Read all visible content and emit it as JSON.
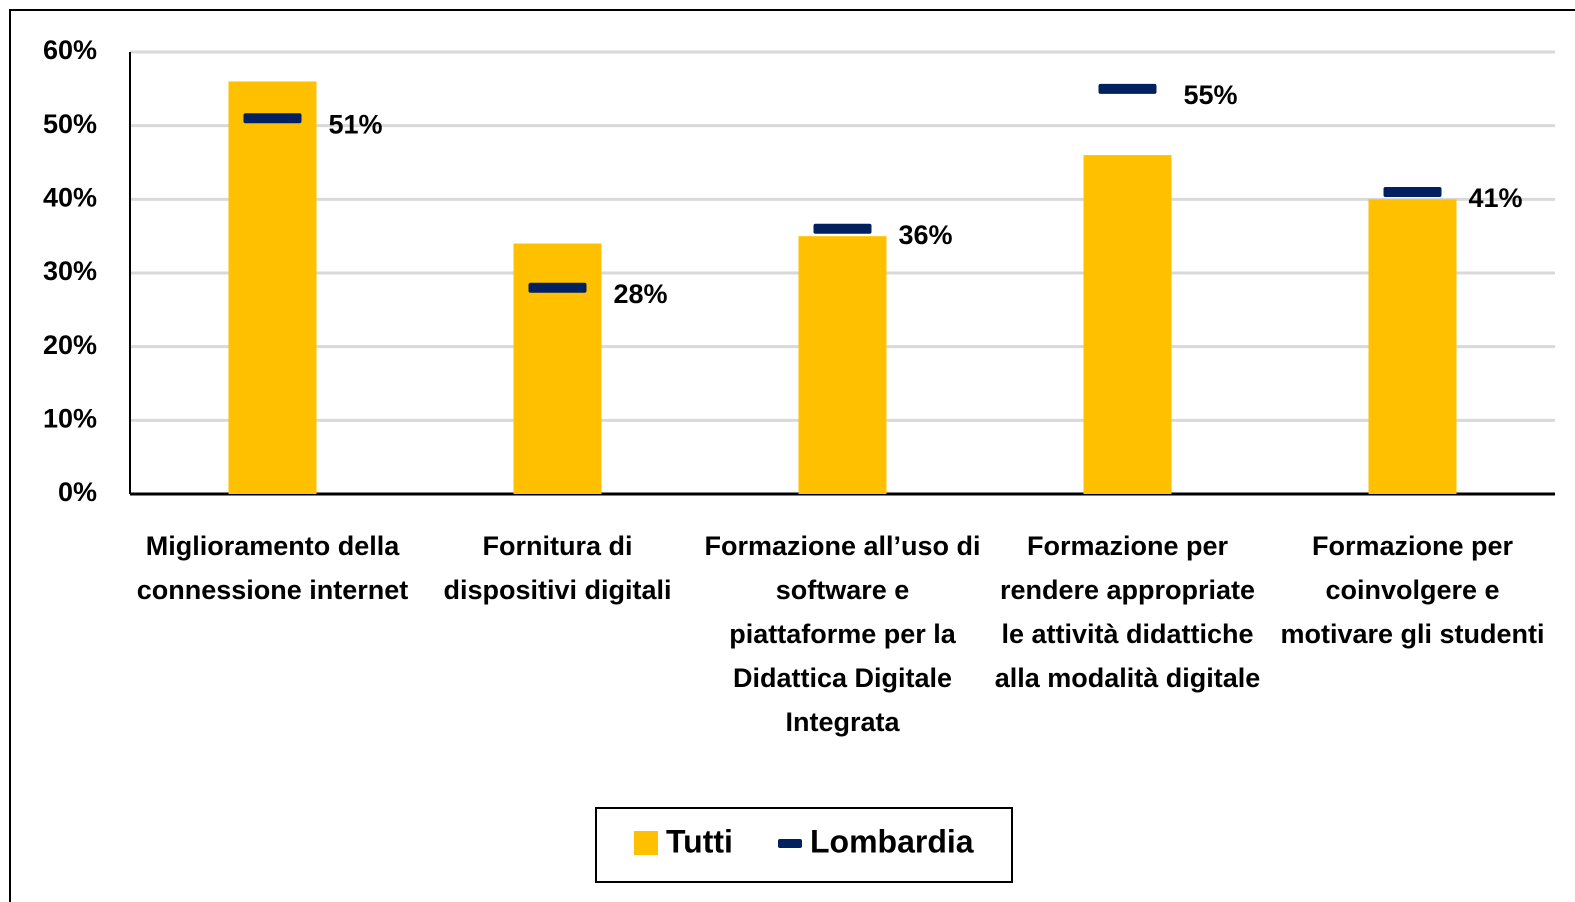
{
  "chart_data": {
    "type": "bar",
    "categories": [
      "Miglioramento della connessione internet",
      "Fornitura di dispositivi digitali",
      "Formazione all’uso di software e piattaforme per la Didattica Digitale Integrata",
      "Formazione per rendere appropriate le attività didattiche alla modalità digitale",
      "Formazione per coinvolgere e motivare gli studenti"
    ],
    "series": [
      {
        "name": "Tutti",
        "color": "#ffc000",
        "values": [
          56,
          34,
          35,
          46,
          40
        ]
      },
      {
        "name": "Lombardia",
        "color": "#002060",
        "marker": "dash",
        "values": [
          51,
          28,
          36,
          55,
          41
        ],
        "value_labels": [
          "51%",
          "28%",
          "36%",
          "55%",
          "41%"
        ]
      }
    ],
    "ylim": [
      0,
      60
    ],
    "yticks": [
      {
        "value": 0,
        "label": "0%"
      },
      {
        "value": 10,
        "label": "10%"
      },
      {
        "value": 20,
        "label": "20%"
      },
      {
        "value": 30,
        "label": "30%"
      },
      {
        "value": 40,
        "label": "40%"
      },
      {
        "value": 50,
        "label": "50%"
      },
      {
        "value": 60,
        "label": "60%"
      }
    ],
    "grid": true,
    "legend": "bottom"
  }
}
